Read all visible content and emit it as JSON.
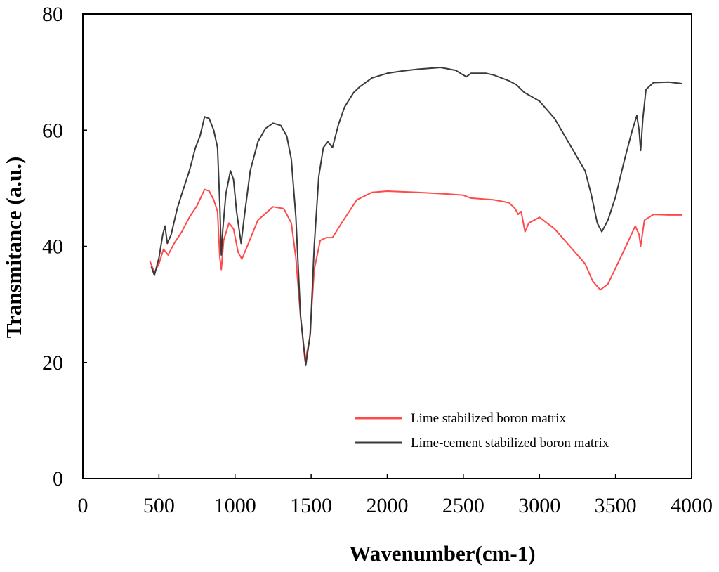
{
  "chart_data": {
    "type": "line",
    "title": "",
    "xlabel": "Wavenumber(cm-1)",
    "ylabel": "Transmitance (a.u.)",
    "xlim": [
      0,
      4000
    ],
    "ylim": [
      0,
      80
    ],
    "xticks": [
      "0",
      "500",
      "1000",
      "1500",
      "2000",
      "2500",
      "3000",
      "3500",
      "4000"
    ],
    "yticks": [
      "0",
      "20",
      "40",
      "60",
      "80"
    ],
    "grid": false,
    "legend_position": "bottom-right",
    "series": [
      {
        "name": "Lime stabilized boron matrix",
        "color": "#ff4a4a",
        "points": [
          [
            440,
            37.5
          ],
          [
            470,
            35.5
          ],
          [
            500,
            37.0
          ],
          [
            530,
            39.5
          ],
          [
            560,
            38.5
          ],
          [
            600,
            40.5
          ],
          [
            650,
            42.5
          ],
          [
            700,
            45.0
          ],
          [
            750,
            47.0
          ],
          [
            800,
            49.8
          ],
          [
            830,
            49.5
          ],
          [
            860,
            48.0
          ],
          [
            885,
            46.0
          ],
          [
            900,
            38.0
          ],
          [
            910,
            36.0
          ],
          [
            925,
            41.0
          ],
          [
            960,
            44.0
          ],
          [
            990,
            43.0
          ],
          [
            1020,
            39.0
          ],
          [
            1045,
            37.8
          ],
          [
            1080,
            40.0
          ],
          [
            1150,
            44.5
          ],
          [
            1250,
            46.8
          ],
          [
            1320,
            46.5
          ],
          [
            1370,
            44.0
          ],
          [
            1400,
            38.0
          ],
          [
            1430,
            28.0
          ],
          [
            1460,
            20.2
          ],
          [
            1490,
            24.0
          ],
          [
            1520,
            36.0
          ],
          [
            1560,
            41.0
          ],
          [
            1600,
            41.5
          ],
          [
            1640,
            41.5
          ],
          [
            1700,
            44.0
          ],
          [
            1800,
            48.0
          ],
          [
            1900,
            49.3
          ],
          [
            2000,
            49.5
          ],
          [
            2200,
            49.3
          ],
          [
            2400,
            49.0
          ],
          [
            2500,
            48.8
          ],
          [
            2550,
            48.3
          ],
          [
            2700,
            48.0
          ],
          [
            2800,
            47.5
          ],
          [
            2840,
            46.5
          ],
          [
            2860,
            45.5
          ],
          [
            2880,
            46.0
          ],
          [
            2905,
            42.5
          ],
          [
            2930,
            44.0
          ],
          [
            3000,
            45.0
          ],
          [
            3100,
            43.0
          ],
          [
            3200,
            40.0
          ],
          [
            3300,
            37.0
          ],
          [
            3350,
            34.0
          ],
          [
            3400,
            32.5
          ],
          [
            3450,
            33.5
          ],
          [
            3550,
            39.0
          ],
          [
            3630,
            43.5
          ],
          [
            3655,
            42.0
          ],
          [
            3665,
            40.0
          ],
          [
            3690,
            44.5
          ],
          [
            3750,
            45.5
          ],
          [
            3850,
            45.4
          ],
          [
            3940,
            45.4
          ]
        ]
      },
      {
        "name": "Lime-cement stabilized boron matrix",
        "color": "#3a3a3a",
        "points": [
          [
            450,
            36.5
          ],
          [
            470,
            35.0
          ],
          [
            500,
            38.0
          ],
          [
            525,
            42.0
          ],
          [
            540,
            43.5
          ],
          [
            555,
            40.5
          ],
          [
            580,
            42.0
          ],
          [
            620,
            46.5
          ],
          [
            650,
            49.0
          ],
          [
            700,
            53.0
          ],
          [
            740,
            57.0
          ],
          [
            770,
            59.0
          ],
          [
            800,
            62.3
          ],
          [
            830,
            62.0
          ],
          [
            860,
            60.0
          ],
          [
            885,
            57.0
          ],
          [
            900,
            47.0
          ],
          [
            910,
            38.5
          ],
          [
            920,
            43.0
          ],
          [
            940,
            49.0
          ],
          [
            970,
            53.0
          ],
          [
            990,
            51.5
          ],
          [
            1010,
            46.0
          ],
          [
            1040,
            40.5
          ],
          [
            1060,
            45.0
          ],
          [
            1100,
            53.0
          ],
          [
            1150,
            58.0
          ],
          [
            1200,
            60.3
          ],
          [
            1250,
            61.2
          ],
          [
            1300,
            60.8
          ],
          [
            1340,
            59.0
          ],
          [
            1370,
            55.0
          ],
          [
            1400,
            45.0
          ],
          [
            1430,
            28.0
          ],
          [
            1465,
            19.5
          ],
          [
            1495,
            25.0
          ],
          [
            1520,
            40.0
          ],
          [
            1550,
            52.0
          ],
          [
            1580,
            57.0
          ],
          [
            1610,
            58.0
          ],
          [
            1640,
            57.0
          ],
          [
            1680,
            61.0
          ],
          [
            1720,
            64.0
          ],
          [
            1780,
            66.5
          ],
          [
            1820,
            67.5
          ],
          [
            1900,
            69.0
          ],
          [
            2000,
            69.8
          ],
          [
            2100,
            70.2
          ],
          [
            2200,
            70.5
          ],
          [
            2350,
            70.8
          ],
          [
            2450,
            70.3
          ],
          [
            2500,
            69.5
          ],
          [
            2520,
            69.2
          ],
          [
            2550,
            69.8
          ],
          [
            2650,
            69.8
          ],
          [
            2700,
            69.5
          ],
          [
            2800,
            68.5
          ],
          [
            2850,
            67.8
          ],
          [
            2900,
            66.5
          ],
          [
            3000,
            65.0
          ],
          [
            3100,
            62.0
          ],
          [
            3200,
            57.5
          ],
          [
            3300,
            53.0
          ],
          [
            3340,
            49.0
          ],
          [
            3380,
            44.0
          ],
          [
            3410,
            42.5
          ],
          [
            3450,
            44.5
          ],
          [
            3500,
            48.5
          ],
          [
            3560,
            55.0
          ],
          [
            3610,
            60.0
          ],
          [
            3640,
            62.5
          ],
          [
            3655,
            60.0
          ],
          [
            3665,
            56.5
          ],
          [
            3680,
            62.0
          ],
          [
            3700,
            67.0
          ],
          [
            3750,
            68.2
          ],
          [
            3850,
            68.3
          ],
          [
            3940,
            68.0
          ]
        ]
      }
    ]
  }
}
